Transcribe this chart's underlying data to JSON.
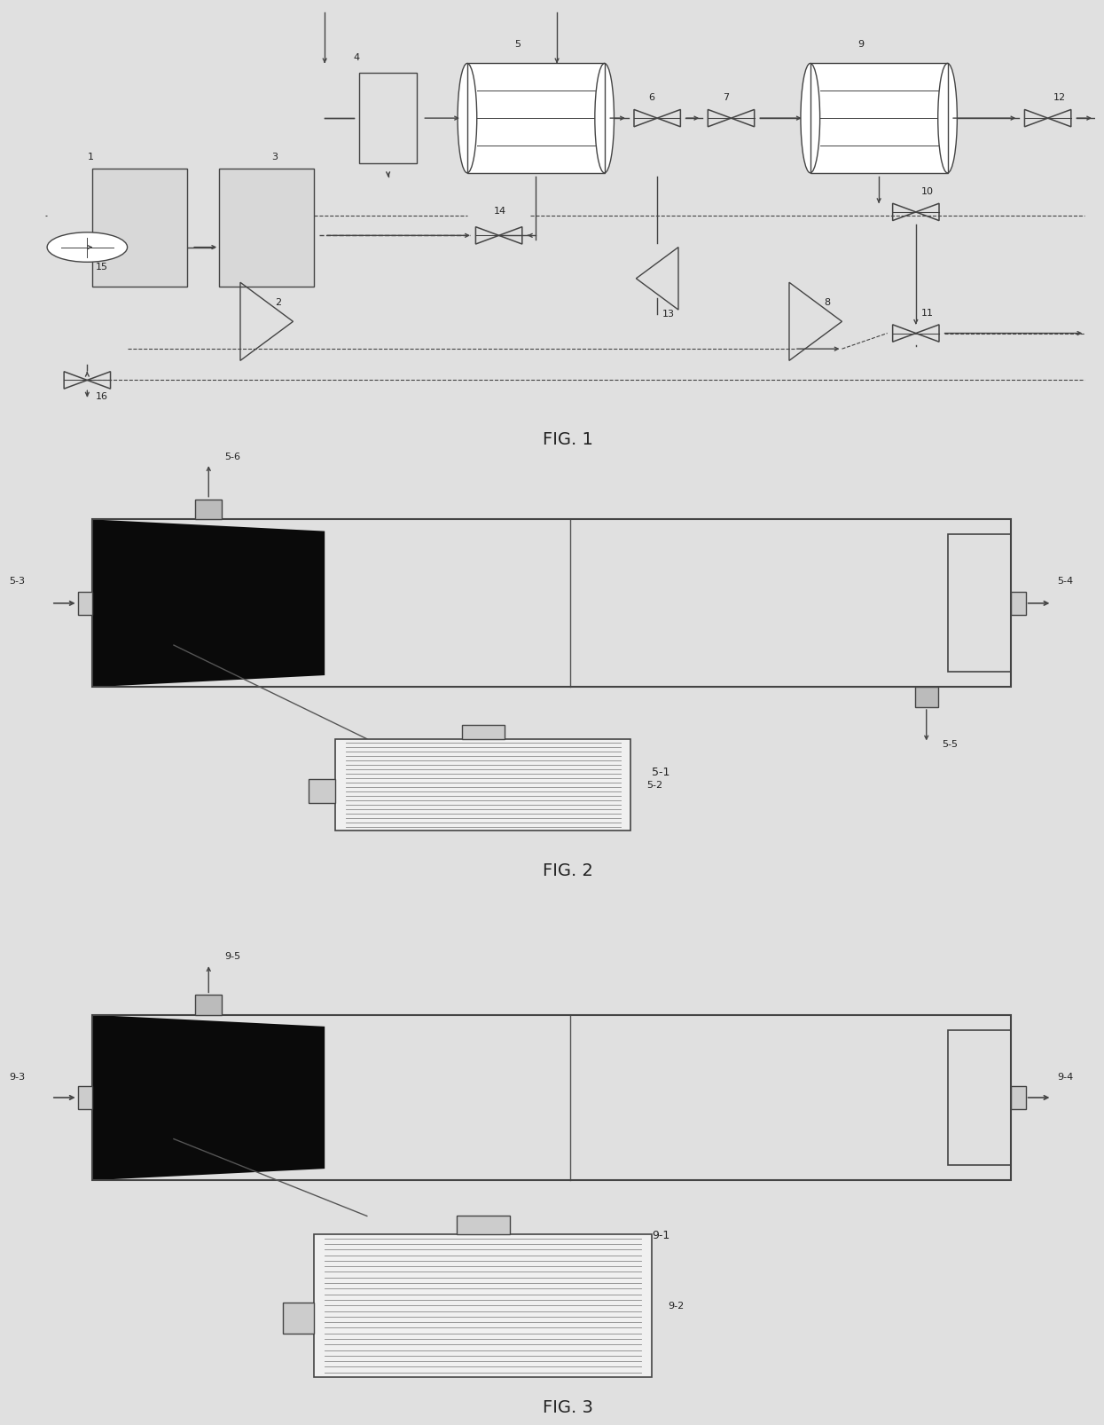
{
  "fig_title1": "FIG. 1",
  "fig_title2": "FIG. 2",
  "fig_title3": "FIG. 3",
  "bg_color": "#e0e0e0",
  "line_color": "#444444",
  "dark_fill": "#111111",
  "box_fill": "#d4d4d4",
  "white_fill": "#ffffff",
  "cap_fill": "#e8e8e8"
}
